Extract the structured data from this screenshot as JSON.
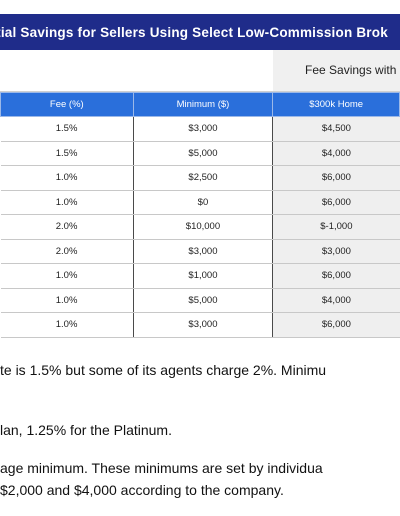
{
  "title": "ential Savings for Sellers Using Select Low-Commission Brok",
  "fee_savings_header": "Fee Savings with",
  "columns": [
    "",
    "Fee (%)",
    "Minimum ($)",
    "$300k Home"
  ],
  "rows": [
    [
      "1.5%",
      "$3,000",
      "$4,500"
    ],
    [
      "1.5%",
      "$5,000",
      "$4,000"
    ],
    [
      "1.0%",
      "$2,500",
      "$6,000"
    ],
    [
      "1.0%",
      "$0",
      "$6,000"
    ],
    [
      "2.0%",
      "$10,000",
      "$-1,000"
    ],
    [
      "2.0%",
      "$3,000",
      "$3,000"
    ],
    [
      "1.0%",
      "$1,000",
      "$6,000"
    ],
    [
      "1.0%",
      "$5,000",
      "$4,000"
    ],
    [
      "1.0%",
      "$3,000",
      "$6,000"
    ]
  ],
  "notes": [
    "te is 1.5% but some of its agents charge 2%.  Minimu",
    "lan, 1.25% for the Platinum.",
    "age minimum.  These minimums are set by individua",
    "$2,000 and $4,000 according to the company."
  ],
  "colors": {
    "title_bg": "#1f2c8a",
    "header_bg": "#2a6fdb",
    "home_col_bg": "#efefef"
  }
}
